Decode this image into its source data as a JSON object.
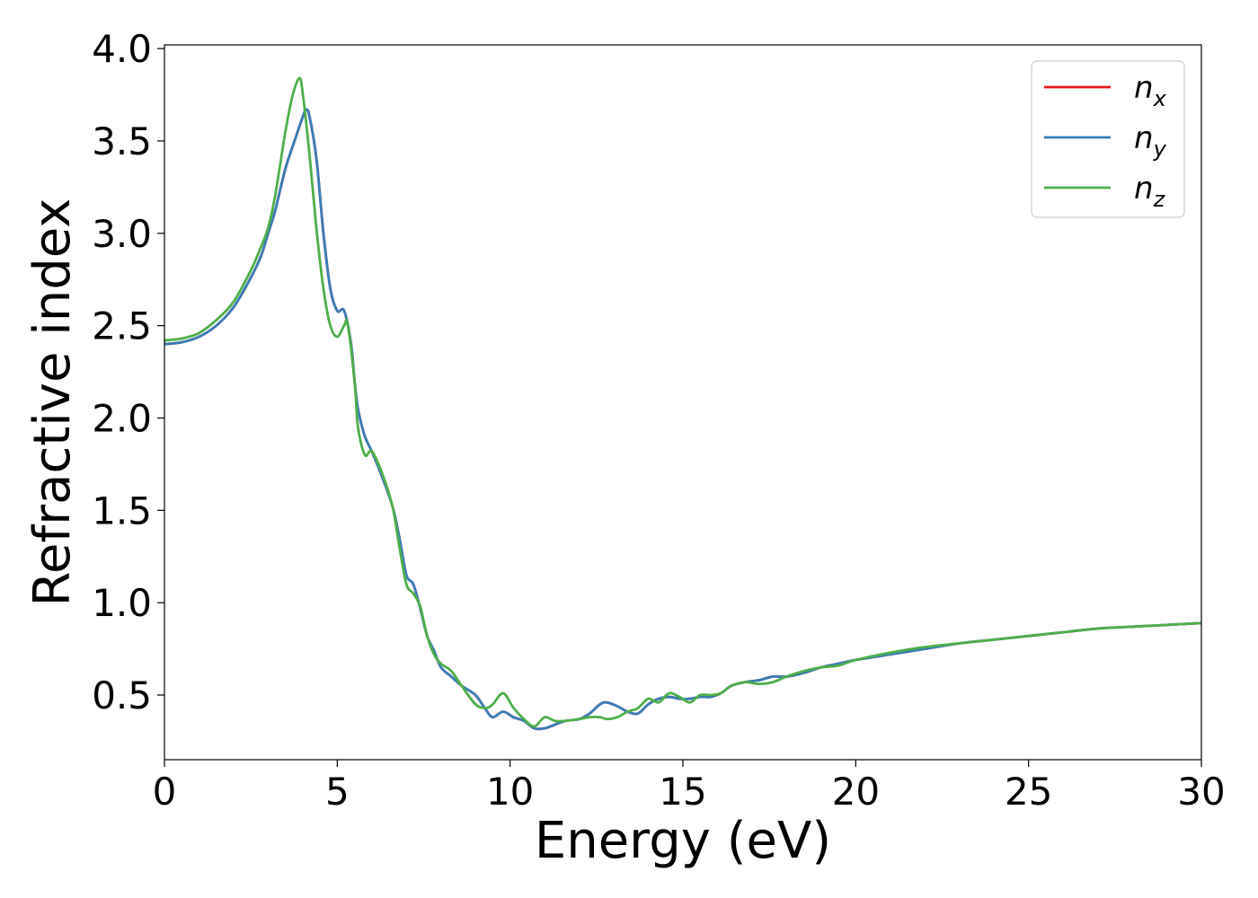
{
  "chart_data": {
    "type": "line",
    "xlabel": "Energy (eV)",
    "ylabel": "Refractive index",
    "xlim": [
      0,
      30
    ],
    "ylim": [
      0.15,
      4.02
    ],
    "xticks": [
      "0",
      "5",
      "10",
      "15",
      "20",
      "25",
      "30"
    ],
    "yticks": [
      "0.5",
      "1.0",
      "1.5",
      "2.0",
      "2.5",
      "3.0",
      "3.5",
      "4.0"
    ],
    "grid": false,
    "legend_position": "top-right",
    "series": [
      {
        "name": "n",
        "subscript": "x",
        "color": "#e41a1c",
        "x": [
          0,
          0.5,
          1.0,
          1.5,
          2.0,
          2.5,
          2.8,
          3.0,
          3.2,
          3.5,
          3.8,
          4.0,
          4.1,
          4.2,
          4.4,
          4.6,
          4.8,
          5.0,
          5.2,
          5.4,
          5.5,
          5.6,
          5.8,
          6.0,
          6.3,
          6.6,
          6.8,
          7.0,
          7.2,
          7.4,
          7.6,
          7.8,
          8.0,
          8.3,
          8.6,
          9.0,
          9.3,
          9.5,
          9.8,
          10.1,
          10.4,
          10.7,
          11.0,
          11.3,
          11.6,
          12.0,
          12.3,
          12.6,
          12.8,
          13.1,
          13.4,
          13.7,
          14.0,
          14.3,
          14.6,
          14.9,
          15.2,
          15.5,
          15.8,
          16.1,
          16.4,
          16.8,
          17.2,
          17.6,
          18.0,
          18.5,
          19.0,
          19.5,
          20.0,
          21.0,
          22.0,
          23.0,
          24.0,
          25.0,
          26.0,
          27.0,
          28.0,
          29.0,
          30.0
        ],
        "values": [
          2.4,
          2.41,
          2.44,
          2.5,
          2.6,
          2.76,
          2.88,
          3.0,
          3.12,
          3.35,
          3.52,
          3.63,
          3.67,
          3.63,
          3.4,
          3.0,
          2.7,
          2.58,
          2.58,
          2.4,
          2.2,
          2.05,
          1.9,
          1.82,
          1.68,
          1.52,
          1.35,
          1.15,
          1.1,
          0.97,
          0.82,
          0.74,
          0.65,
          0.6,
          0.55,
          0.5,
          0.42,
          0.38,
          0.41,
          0.38,
          0.36,
          0.32,
          0.32,
          0.34,
          0.36,
          0.37,
          0.4,
          0.45,
          0.46,
          0.44,
          0.41,
          0.4,
          0.45,
          0.48,
          0.49,
          0.48,
          0.48,
          0.49,
          0.49,
          0.51,
          0.55,
          0.57,
          0.58,
          0.6,
          0.6,
          0.62,
          0.65,
          0.67,
          0.69,
          0.72,
          0.75,
          0.78,
          0.8,
          0.82,
          0.84,
          0.86,
          0.87,
          0.88,
          0.89
        ]
      },
      {
        "name": "n",
        "subscript": "y",
        "color": "#377eb8",
        "x": [
          0,
          0.5,
          1.0,
          1.5,
          2.0,
          2.5,
          2.8,
          3.0,
          3.2,
          3.5,
          3.8,
          4.0,
          4.1,
          4.2,
          4.4,
          4.6,
          4.8,
          5.0,
          5.2,
          5.4,
          5.5,
          5.6,
          5.8,
          6.0,
          6.3,
          6.6,
          6.8,
          7.0,
          7.2,
          7.4,
          7.6,
          7.8,
          8.0,
          8.3,
          8.6,
          9.0,
          9.3,
          9.5,
          9.8,
          10.1,
          10.4,
          10.7,
          11.0,
          11.3,
          11.6,
          12.0,
          12.3,
          12.6,
          12.8,
          13.1,
          13.4,
          13.7,
          14.0,
          14.3,
          14.6,
          14.9,
          15.2,
          15.5,
          15.8,
          16.1,
          16.4,
          16.8,
          17.2,
          17.6,
          18.0,
          18.5,
          19.0,
          19.5,
          20.0,
          21.0,
          22.0,
          23.0,
          24.0,
          25.0,
          26.0,
          27.0,
          28.0,
          29.0,
          30.0
        ],
        "values": [
          2.4,
          2.41,
          2.44,
          2.5,
          2.6,
          2.76,
          2.88,
          3.0,
          3.12,
          3.35,
          3.52,
          3.63,
          3.67,
          3.63,
          3.4,
          3.0,
          2.7,
          2.58,
          2.58,
          2.4,
          2.2,
          2.05,
          1.9,
          1.82,
          1.68,
          1.52,
          1.35,
          1.15,
          1.1,
          0.97,
          0.82,
          0.74,
          0.65,
          0.6,
          0.55,
          0.5,
          0.42,
          0.38,
          0.41,
          0.38,
          0.36,
          0.32,
          0.32,
          0.34,
          0.36,
          0.37,
          0.4,
          0.45,
          0.46,
          0.44,
          0.41,
          0.4,
          0.45,
          0.48,
          0.49,
          0.48,
          0.48,
          0.49,
          0.49,
          0.51,
          0.55,
          0.57,
          0.58,
          0.6,
          0.6,
          0.62,
          0.65,
          0.67,
          0.69,
          0.72,
          0.75,
          0.78,
          0.8,
          0.82,
          0.84,
          0.86,
          0.87,
          0.88,
          0.89
        ]
      },
      {
        "name": "n",
        "subscript": "z",
        "color": "#4daf4a",
        "x": [
          0,
          0.5,
          1.0,
          1.5,
          2.0,
          2.5,
          2.8,
          3.0,
          3.2,
          3.5,
          3.7,
          3.9,
          4.0,
          4.2,
          4.4,
          4.6,
          4.8,
          5.0,
          5.2,
          5.3,
          5.5,
          5.6,
          5.8,
          6.0,
          6.3,
          6.6,
          6.8,
          7.0,
          7.2,
          7.4,
          7.6,
          7.8,
          8.0,
          8.3,
          8.6,
          9.0,
          9.3,
          9.5,
          9.8,
          10.1,
          10.4,
          10.7,
          11.0,
          11.3,
          11.6,
          12.0,
          12.3,
          12.6,
          12.8,
          13.1,
          13.4,
          13.7,
          14.0,
          14.3,
          14.6,
          14.9,
          15.2,
          15.5,
          15.8,
          16.1,
          16.4,
          16.8,
          17.2,
          17.6,
          18.0,
          18.5,
          19.0,
          19.5,
          20.0,
          21.0,
          22.0,
          23.0,
          24.0,
          25.0,
          26.0,
          27.0,
          28.0,
          29.0,
          30.0
        ],
        "values": [
          2.42,
          2.43,
          2.46,
          2.53,
          2.63,
          2.8,
          2.93,
          3.03,
          3.2,
          3.55,
          3.74,
          3.84,
          3.76,
          3.42,
          3.02,
          2.7,
          2.5,
          2.44,
          2.5,
          2.51,
          2.2,
          1.95,
          1.8,
          1.82,
          1.7,
          1.52,
          1.3,
          1.1,
          1.05,
          0.98,
          0.82,
          0.72,
          0.67,
          0.63,
          0.55,
          0.45,
          0.43,
          0.45,
          0.51,
          0.43,
          0.37,
          0.33,
          0.38,
          0.36,
          0.36,
          0.37,
          0.38,
          0.38,
          0.37,
          0.38,
          0.41,
          0.43,
          0.48,
          0.46,
          0.51,
          0.49,
          0.46,
          0.5,
          0.5,
          0.51,
          0.55,
          0.57,
          0.56,
          0.57,
          0.6,
          0.63,
          0.65,
          0.66,
          0.69,
          0.73,
          0.76,
          0.78,
          0.8,
          0.82,
          0.84,
          0.86,
          0.87,
          0.88,
          0.89
        ]
      }
    ]
  }
}
